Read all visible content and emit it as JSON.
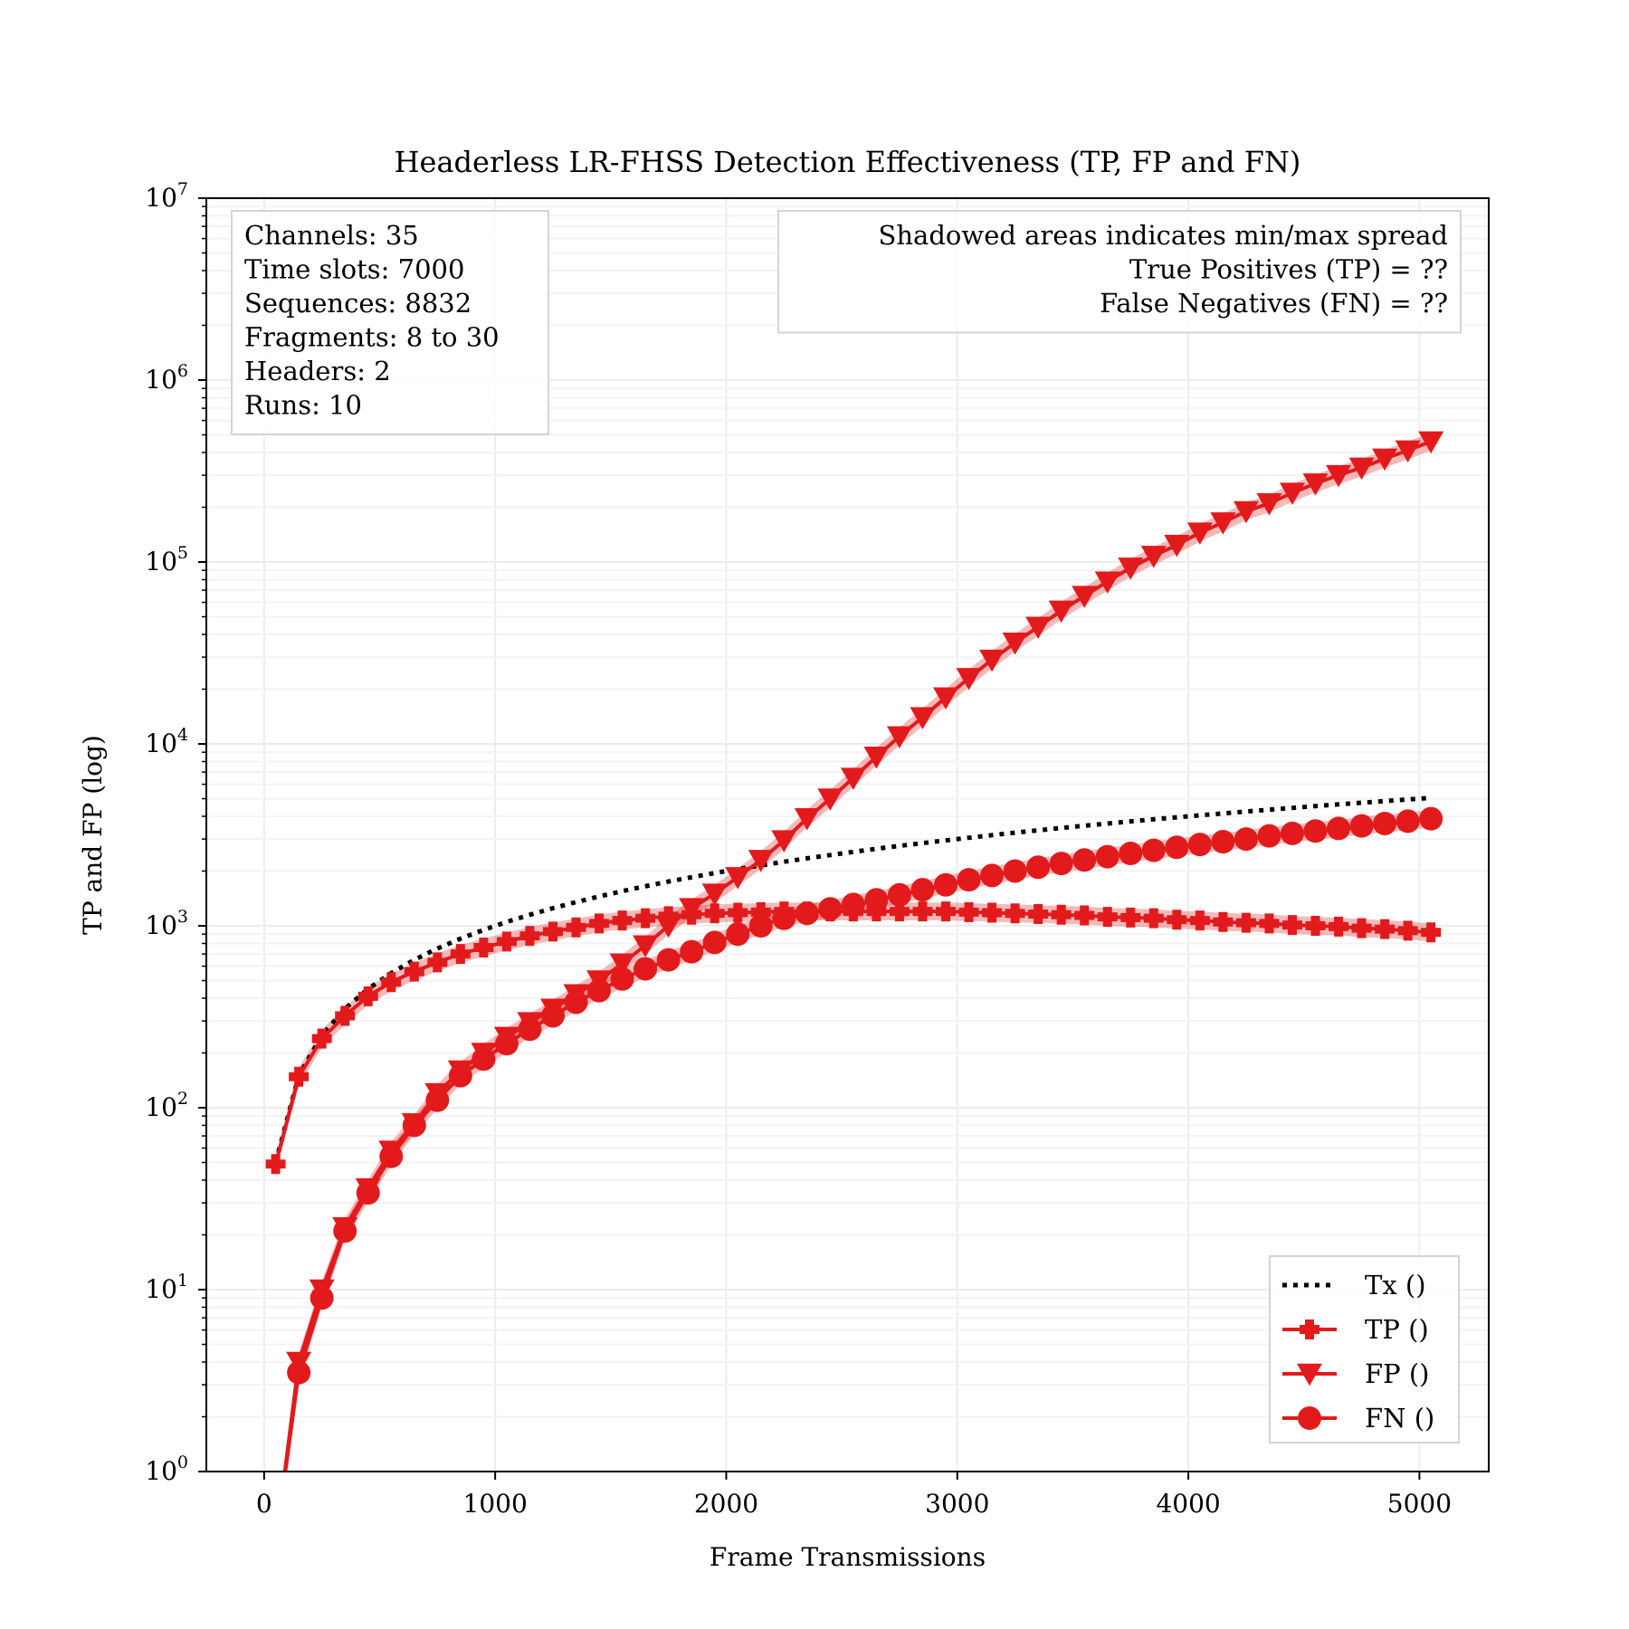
{
  "chart_data": {
    "type": "line",
    "title": "Headerless LR-FHSS Detection Effectiveness (TP, FP and FN)",
    "xlabel": "Frame Transmissions",
    "ylabel": "TP and FP (log)",
    "xlim": [
      -250,
      5300
    ],
    "ylim_log10": [
      0,
      7
    ],
    "yscale": "log",
    "grid": true,
    "x_ticks": [
      0,
      1000,
      2000,
      3000,
      4000,
      5000
    ],
    "x_tick_labels": [
      "0",
      "1000",
      "2000",
      "3000",
      "4000",
      "5000"
    ],
    "y_ticks_exp": [
      0,
      1,
      2,
      3,
      4,
      5,
      6,
      7
    ],
    "y_tick_base": "10",
    "y_tick_exponents": [
      "0",
      "1",
      "2",
      "3",
      "4",
      "5",
      "6",
      "7"
    ],
    "info_box_left": [
      "Channels: 35",
      "Time slots: 7000",
      "Sequences: 8832",
      "Fragments: 8 to 30",
      "Headers: 2",
      "Runs: 10"
    ],
    "info_box_right": [
      "Shadowed areas indicates min/max spread",
      "True Positives (TP) = ??",
      "False Negatives (FN) = ??"
    ],
    "legend_position": "bottom-right",
    "x": [
      50,
      150,
      250,
      350,
      450,
      550,
      650,
      750,
      850,
      950,
      1050,
      1150,
      1250,
      1350,
      1450,
      1550,
      1650,
      1750,
      1850,
      1950,
      2050,
      2150,
      2250,
      2350,
      2450,
      2550,
      2650,
      2750,
      2850,
      2950,
      3050,
      3150,
      3250,
      3350,
      3450,
      3550,
      3650,
      3750,
      3850,
      3950,
      4050,
      4150,
      4250,
      4350,
      4450,
      4550,
      4650,
      4750,
      4850,
      4950,
      5050
    ],
    "series": [
      {
        "name": "Tx ()",
        "color": "#000000",
        "style": "dotted",
        "marker": "none",
        "values": [
          50,
          150,
          250,
          350,
          450,
          550,
          650,
          750,
          850,
          950,
          1050,
          1150,
          1250,
          1350,
          1450,
          1550,
          1650,
          1750,
          1850,
          1950,
          2050,
          2150,
          2250,
          2350,
          2450,
          2550,
          2650,
          2750,
          2850,
          2950,
          3050,
          3150,
          3250,
          3350,
          3450,
          3550,
          3650,
          3750,
          3850,
          3950,
          4050,
          4150,
          4250,
          4350,
          4450,
          4550,
          4650,
          4750,
          4850,
          4950,
          5050
        ]
      },
      {
        "name": "TP ()",
        "color": "#e31a1c",
        "style": "solid",
        "marker": "plus",
        "values": [
          49,
          148,
          240,
          320,
          410,
          490,
          560,
          630,
          700,
          760,
          820,
          880,
          930,
          980,
          1030,
          1070,
          1100,
          1130,
          1150,
          1170,
          1180,
          1190,
          1200,
          1200,
          1200,
          1200,
          1200,
          1200,
          1200,
          1200,
          1190,
          1180,
          1170,
          1160,
          1150,
          1140,
          1120,
          1110,
          1100,
          1080,
          1070,
          1050,
          1040,
          1030,
          1010,
          1000,
          990,
          970,
          960,
          940,
          920
        ]
      },
      {
        "name": "FP ()",
        "color": "#e31a1c",
        "style": "solid",
        "marker": "triangle-down",
        "values": [
          0.4,
          4,
          10,
          22,
          36,
          58,
          82,
          120,
          160,
          200,
          245,
          295,
          350,
          420,
          500,
          620,
          780,
          1000,
          1250,
          1500,
          1850,
          2300,
          2950,
          3900,
          5000,
          6500,
          8500,
          11000,
          14000,
          18000,
          23000,
          29000,
          36000,
          44000,
          54000,
          65000,
          78000,
          93000,
          108000,
          124000,
          145000,
          165000,
          190000,
          210000,
          240000,
          270000,
          300000,
          330000,
          370000,
          410000,
          460000
        ]
      },
      {
        "name": "FN ()",
        "color": "#e31a1c",
        "style": "solid",
        "marker": "circle",
        "values": [
          0.4,
          3.5,
          9,
          21,
          34,
          54,
          80,
          110,
          150,
          185,
          225,
          270,
          320,
          380,
          440,
          510,
          580,
          650,
          720,
          810,
          900,
          1000,
          1100,
          1170,
          1240,
          1310,
          1390,
          1480,
          1580,
          1680,
          1790,
          1890,
          2000,
          2100,
          2200,
          2300,
          2400,
          2500,
          2600,
          2700,
          2800,
          2900,
          3000,
          3120,
          3220,
          3320,
          3430,
          3540,
          3650,
          3760,
          3880
        ]
      }
    ]
  }
}
